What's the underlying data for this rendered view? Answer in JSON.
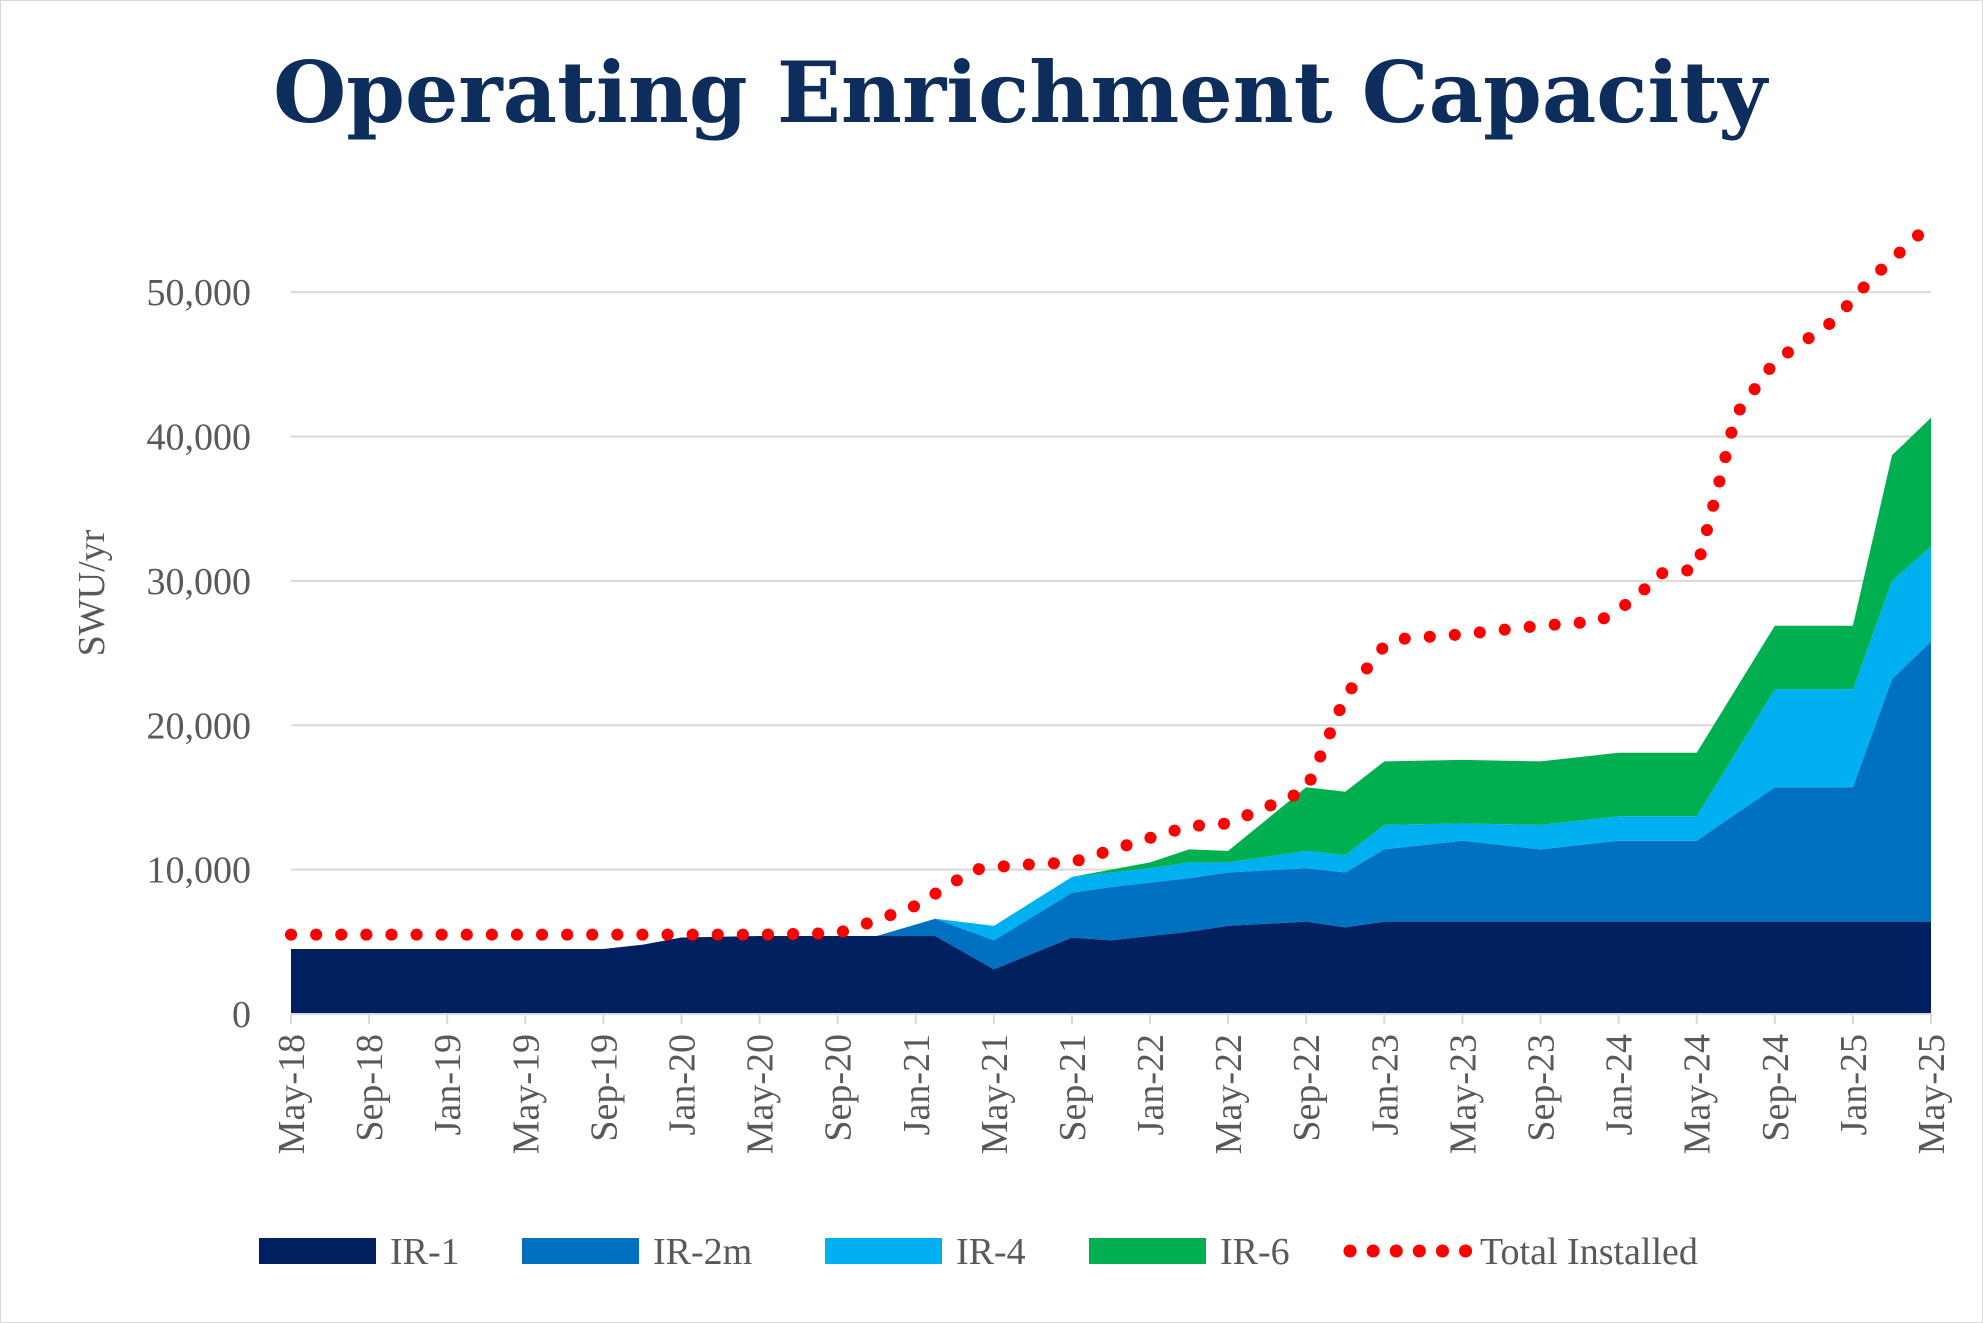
{
  "chart_data": {
    "type": "area",
    "title": "Operating Enrichment Capacity",
    "ylabel": "SWU/yr",
    "xlabel": "",
    "ylim": [
      0,
      55000
    ],
    "y_ticks": [
      0,
      10000,
      20000,
      30000,
      40000,
      50000
    ],
    "y_tick_labels": [
      "0",
      "10,000",
      "20,000",
      "30,000",
      "40,000",
      "50,000"
    ],
    "x_tick_labels": [
      "May-18",
      "Sep-18",
      "Jan-19",
      "May-19",
      "Sep-19",
      "Jan-20",
      "May-20",
      "Sep-20",
      "Jan-21",
      "May-21",
      "Sep-21",
      "Jan-22",
      "May-22",
      "Sep-22",
      "Jan-23",
      "May-23",
      "Sep-23",
      "Jan-24",
      "May-24",
      "Sep-24",
      "Jan-25",
      "May-25"
    ],
    "grid": "horizontal",
    "legend_position": "bottom",
    "colors": {
      "title": "#0d2e5c",
      "axis_text": "#595959",
      "gridline": "#d9d9d9",
      "ir1": "#002060",
      "ir2m": "#0070c0",
      "ir4": "#00b0f0",
      "ir6": "#00b050",
      "total": "#ff0000"
    },
    "stacked_series": [
      {
        "name": "IR-1",
        "color": "#002060",
        "points": [
          [
            "May-18",
            4500
          ],
          [
            "Sep-18",
            4500
          ],
          [
            "Jan-19",
            4500
          ],
          [
            "May-19",
            4500
          ],
          [
            "Sep-19",
            4500
          ],
          [
            "Nov-19",
            4800
          ],
          [
            "Jan-20",
            5300
          ],
          [
            "May-20",
            5400
          ],
          [
            "Sep-20",
            5400
          ],
          [
            "Nov-20",
            5400
          ],
          [
            "Feb-21",
            5400
          ],
          [
            "May-21",
            3100
          ],
          [
            "Sep-21",
            5300
          ],
          [
            "Nov-21",
            5100
          ],
          [
            "Jan-22",
            5400
          ],
          [
            "Mar-22",
            5700
          ],
          [
            "May-22",
            6100
          ],
          [
            "Sep-22",
            6400
          ],
          [
            "Nov-22",
            6000
          ],
          [
            "Jan-23",
            6400
          ],
          [
            "May-23",
            6400
          ],
          [
            "Sep-23",
            6400
          ],
          [
            "Jan-24",
            6400
          ],
          [
            "May-24",
            6400
          ],
          [
            "Sep-24",
            6400
          ],
          [
            "Jan-25",
            6400
          ],
          [
            "May-25",
            6400
          ]
        ]
      },
      {
        "name": "IR-2m",
        "color": "#0070c0",
        "points": [
          [
            "May-18",
            0
          ],
          [
            "Sep-18",
            0
          ],
          [
            "Jan-19",
            0
          ],
          [
            "May-19",
            0
          ],
          [
            "Sep-19",
            0
          ],
          [
            "Nov-19",
            0
          ],
          [
            "Jan-20",
            0
          ],
          [
            "May-20",
            0
          ],
          [
            "Sep-20",
            0
          ],
          [
            "Nov-20",
            0
          ],
          [
            "Feb-21",
            1200
          ],
          [
            "May-21",
            2000
          ],
          [
            "Sep-21",
            3100
          ],
          [
            "Nov-21",
            3700
          ],
          [
            "Jan-22",
            3700
          ],
          [
            "Mar-22",
            3700
          ],
          [
            "May-22",
            3700
          ],
          [
            "Sep-22",
            3700
          ],
          [
            "Nov-22",
            3800
          ],
          [
            "Jan-23",
            5000
          ],
          [
            "May-23",
            5600
          ],
          [
            "Sep-23",
            5000
          ],
          [
            "Jan-24",
            5600
          ],
          [
            "May-24",
            5600
          ],
          [
            "Sep-24",
            9300
          ],
          [
            "Jan-25",
            9300
          ],
          [
            "Mar-25",
            16800
          ],
          [
            "May-25",
            19400
          ]
        ]
      },
      {
        "name": "IR-4",
        "color": "#00b0f0",
        "points": [
          [
            "May-18",
            0
          ],
          [
            "Sep-18",
            0
          ],
          [
            "Jan-19",
            0
          ],
          [
            "May-19",
            0
          ],
          [
            "Sep-19",
            0
          ],
          [
            "Nov-19",
            0
          ],
          [
            "Jan-20",
            0
          ],
          [
            "May-20",
            0
          ],
          [
            "Sep-20",
            0
          ],
          [
            "Nov-20",
            0
          ],
          [
            "Feb-21",
            0
          ],
          [
            "May-21",
            1000
          ],
          [
            "Sep-21",
            1100
          ],
          [
            "Nov-21",
            1000
          ],
          [
            "Jan-22",
            1000
          ],
          [
            "Mar-22",
            1100
          ],
          [
            "May-22",
            700
          ],
          [
            "Sep-22",
            1200
          ],
          [
            "Nov-22",
            1200
          ],
          [
            "Jan-23",
            1700
          ],
          [
            "May-23",
            1200
          ],
          [
            "Sep-23",
            1700
          ],
          [
            "Jan-24",
            1700
          ],
          [
            "May-24",
            1700
          ],
          [
            "Sep-24",
            6800
          ],
          [
            "Jan-25",
            6800
          ],
          [
            "Mar-25",
            6800
          ],
          [
            "May-25",
            6600
          ]
        ]
      },
      {
        "name": "IR-6",
        "color": "#00b050",
        "points": [
          [
            "May-18",
            0
          ],
          [
            "Sep-18",
            0
          ],
          [
            "Jan-19",
            0
          ],
          [
            "May-19",
            0
          ],
          [
            "Sep-19",
            0
          ],
          [
            "Nov-19",
            0
          ],
          [
            "Jan-20",
            0
          ],
          [
            "May-20",
            0
          ],
          [
            "Sep-20",
            0
          ],
          [
            "Nov-20",
            0
          ],
          [
            "Feb-21",
            0
          ],
          [
            "May-21",
            0
          ],
          [
            "Sep-21",
            0
          ],
          [
            "Nov-21",
            200
          ],
          [
            "Jan-22",
            400
          ],
          [
            "Mar-22",
            900
          ],
          [
            "May-22",
            800
          ],
          [
            "Sep-22",
            4400
          ],
          [
            "Nov-22",
            4400
          ],
          [
            "Jan-23",
            4400
          ],
          [
            "May-23",
            4400
          ],
          [
            "Sep-23",
            4400
          ],
          [
            "Jan-24",
            4400
          ],
          [
            "May-24",
            4400
          ],
          [
            "Sep-24",
            4400
          ],
          [
            "Jan-25",
            4400
          ],
          [
            "Mar-25",
            8700
          ],
          [
            "May-25",
            8900
          ]
        ]
      }
    ],
    "total_installed": {
      "name": "Total Installed",
      "color": "#ff0000",
      "points": [
        [
          "May-18",
          5500
        ],
        [
          "Sep-18",
          5500
        ],
        [
          "Jan-19",
          5500
        ],
        [
          "May-19",
          5500
        ],
        [
          "Sep-19",
          5500
        ],
        [
          "Jan-20",
          5500
        ],
        [
          "May-20",
          5500
        ],
        [
          "Sep-20",
          5600
        ],
        [
          "Nov-20",
          6500
        ],
        [
          "Jan-21",
          7500
        ],
        [
          "Apr-21",
          10000
        ],
        [
          "Jun-21",
          10300
        ],
        [
          "Sep-21",
          10500
        ],
        [
          "Jan-22",
          12200
        ],
        [
          "Mar-22",
          13000
        ],
        [
          "May-22",
          13200
        ],
        [
          "Sep-22",
          15500
        ],
        [
          "Nov-22",
          22000
        ],
        [
          "Jan-23",
          25500
        ],
        [
          "Feb-23",
          26000
        ],
        [
          "May-23",
          26300
        ],
        [
          "Sep-23",
          26900
        ],
        [
          "Dec-23",
          27200
        ],
        [
          "Feb-24",
          28900
        ],
        [
          "Mar-24",
          30500
        ],
        [
          "May-24",
          30800
        ],
        [
          "Jun-24",
          36000
        ],
        [
          "Jul-24",
          41500
        ],
        [
          "Sep-24",
          45200
        ],
        [
          "Dec-24",
          48000
        ],
        [
          "Feb-25",
          51000
        ],
        [
          "Apr-25",
          53500
        ],
        [
          "May-25",
          54800
        ]
      ]
    }
  }
}
